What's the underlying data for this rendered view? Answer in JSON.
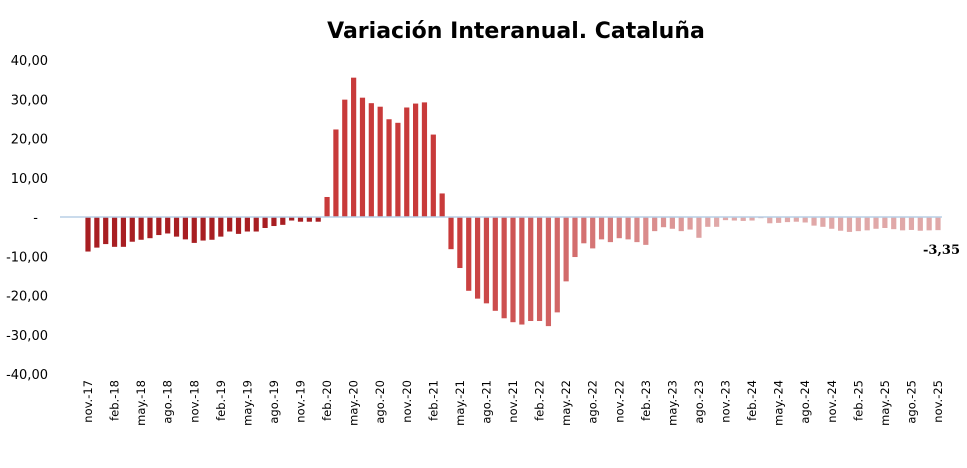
{
  "chart_data": {
    "type": "bar",
    "title": "Variación Interanual. Cataluña",
    "xlabel": "",
    "ylabel": "",
    "ylim": [
      -40,
      40
    ],
    "grid": false,
    "legend": "none",
    "yticks": [
      40,
      30,
      20,
      10,
      0,
      -10,
      -20,
      -30,
      -40
    ],
    "ytick_labels": [
      "40,00",
      "30,00",
      "20,00",
      "10,00",
      "-",
      "-10,00",
      "-20,00",
      "-30,00",
      "-40,00"
    ],
    "xtick_labels": [
      "nov.-17",
      "feb.-18",
      "may.-18",
      "ago.-18",
      "nov.-18",
      "feb.-19",
      "may.-19",
      "ago.-19",
      "nov.-19",
      "feb.-20",
      "may.-20",
      "ago.-20",
      "nov.-20",
      "feb.-21",
      "may.-21",
      "ago.-21",
      "nov.-21",
      "feb.-22",
      "may.-22",
      "ago.-22",
      "nov.-22",
      "feb.-23",
      "may.-23",
      "ago.-23",
      "nov.-23",
      "feb.-24",
      "may.-24",
      "ago.-24",
      "nov.-24",
      "feb.-25",
      "may.-25",
      "ago.-25",
      "nov.-25"
    ],
    "values": [
      -8.8,
      -7.8,
      -6.9,
      -7.6,
      -7.6,
      -6.3,
      -5.8,
      -5.4,
      -4.6,
      -4.2,
      -5.0,
      -5.7,
      -6.6,
      -6.0,
      -5.8,
      -5.0,
      -3.7,
      -4.3,
      -3.7,
      -3.7,
      -2.8,
      -2.3,
      -2.0,
      -0.9,
      -1.2,
      -1.2,
      -1.2,
      5.1,
      22.3,
      29.9,
      35.5,
      30.4,
      29.0,
      28.1,
      24.9,
      24.0,
      27.9,
      28.9,
      29.2,
      21.0,
      6.0,
      -8.2,
      -13.0,
      -18.8,
      -20.8,
      -22.0,
      -23.9,
      -25.8,
      -26.8,
      -27.4,
      -26.5,
      -26.5,
      -27.8,
      -24.3,
      -16.4,
      -10.2,
      -6.7,
      -8.0,
      -5.7,
      -6.4,
      -5.4,
      -5.7,
      -6.4,
      -7.1,
      -3.6,
      -2.6,
      -3.0,
      -3.6,
      -3.2,
      -5.3,
      -2.5,
      -2.5,
      -0.8,
      -0.9,
      -1.0,
      -0.9,
      -0.3,
      -1.6,
      -1.5,
      -1.3,
      -1.2,
      -1.4,
      -2.2,
      -2.5,
      -3.0,
      -3.5,
      -3.8,
      -3.6,
      -3.4,
      -3.0,
      -2.8,
      -3.1,
      -3.4,
      -3.3,
      -3.5,
      -3.4,
      -3.35
    ],
    "last_value_label": "-3,35",
    "colors": {
      "early": "#a81e22",
      "peak": "#c83a3a",
      "late": "#e0a8a8",
      "zero_line": "#b8cfe6"
    }
  }
}
